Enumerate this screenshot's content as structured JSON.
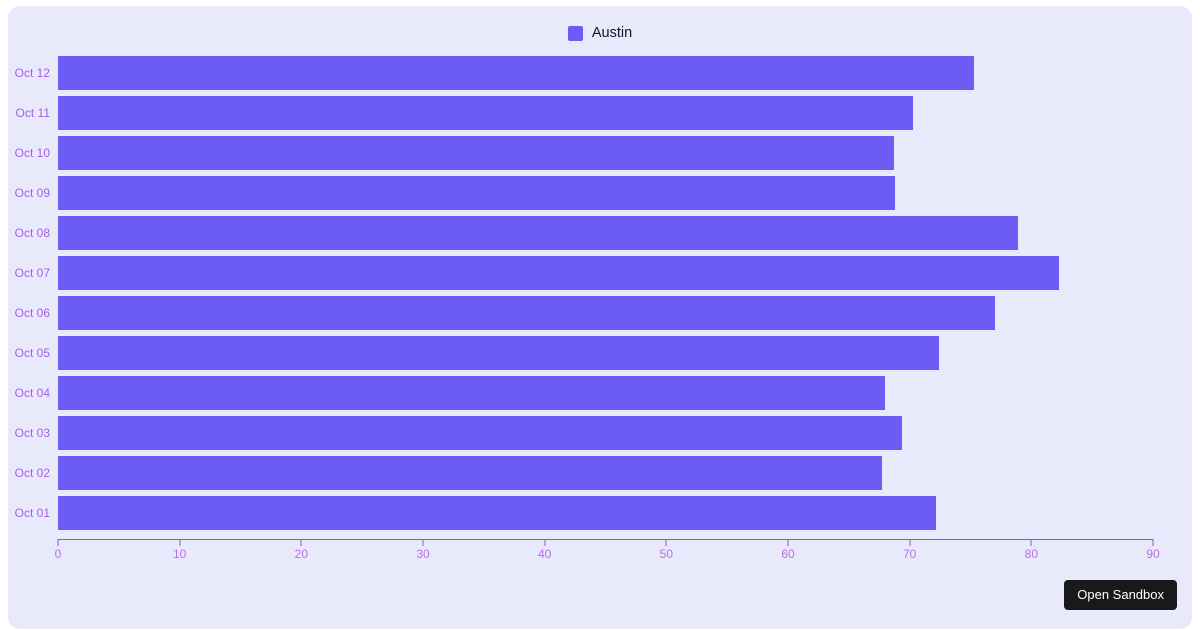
{
  "card": {
    "background": "#e8eafb"
  },
  "legend": {
    "label": "Austin",
    "swatch_color": "#6c5cf5"
  },
  "chart_data": {
    "type": "bar",
    "orientation": "horizontal",
    "series_name": "Austin",
    "categories_order": "top-to-bottom",
    "categories": [
      "Oct 12",
      "Oct 11",
      "Oct 10",
      "Oct 09",
      "Oct 08",
      "Oct 07",
      "Oct 06",
      "Oct 05",
      "Oct 04",
      "Oct 03",
      "Oct 02",
      "Oct 01"
    ],
    "values": [
      75.3,
      70.3,
      68.7,
      68.8,
      78.9,
      82.3,
      77.0,
      72.4,
      68.0,
      69.4,
      67.7,
      72.2
    ],
    "xlim": [
      0,
      90
    ],
    "x_ticks": [
      0,
      10,
      20,
      30,
      40,
      50,
      60,
      70,
      80,
      90
    ],
    "grid": false,
    "legend_position": "top-center",
    "bar_color": "#6c5cf5",
    "axis_color": "#a643e0",
    "tick_label_color": "#bd6cee",
    "category_label_color": "#a75ced"
  },
  "sandbox_button": {
    "label": "Open Sandbox",
    "background": "#19191c",
    "text_color": "#ffffff"
  }
}
